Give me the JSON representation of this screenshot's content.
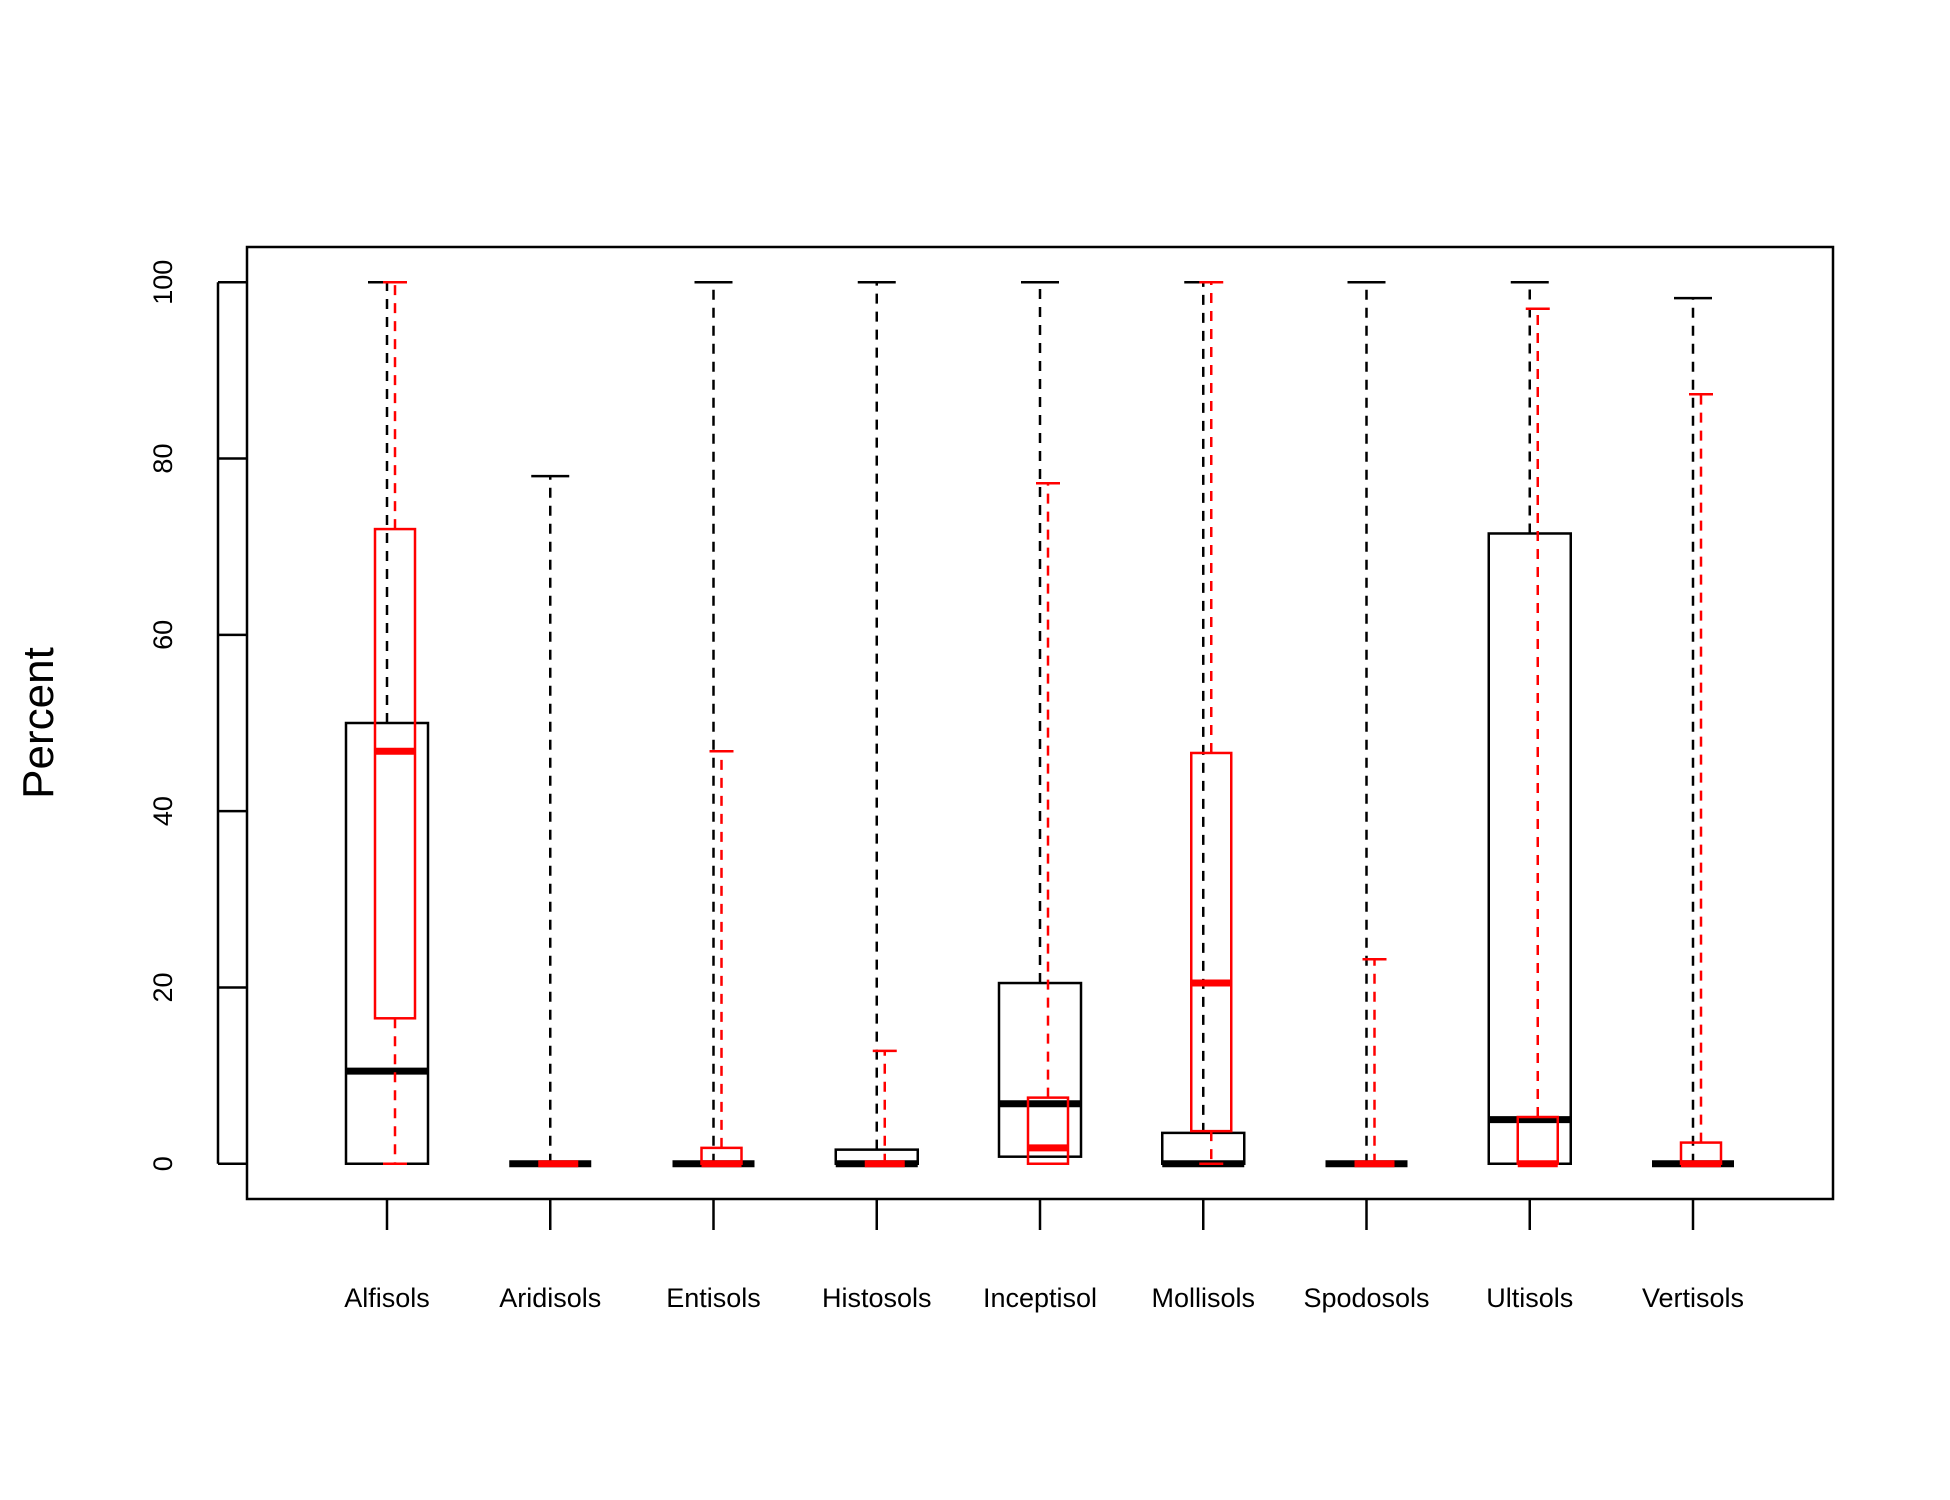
{
  "chart_data": {
    "type": "boxplot",
    "ylabel": "Percent",
    "ylim": [
      -4,
      104
    ],
    "yticks": [
      0,
      20,
      40,
      60,
      80,
      100
    ],
    "categories": [
      "Alfisols",
      "Aridisols",
      "Entisols",
      "Histosols",
      "Inceptisol",
      "Mollisols",
      "Spodosols",
      "Ultisols",
      "Vertisols"
    ],
    "series": [
      {
        "color": "#000000",
        "boxes": [
          {
            "whisker_low": 0,
            "q1": 0,
            "median": 10.5,
            "q3": 50,
            "whisker_high": 100
          },
          {
            "whisker_low": 0,
            "q1": 0,
            "median": 0,
            "q3": 0,
            "whisker_high": 78
          },
          {
            "whisker_low": 0,
            "q1": 0,
            "median": 0,
            "q3": 0,
            "whisker_high": 100
          },
          {
            "whisker_low": 0,
            "q1": 0,
            "median": 0,
            "q3": 1.6,
            "whisker_high": 100
          },
          {
            "whisker_low": 0.8,
            "q1": 0.8,
            "median": 6.8,
            "q3": 20.5,
            "whisker_high": 100
          },
          {
            "whisker_low": 0,
            "q1": 0,
            "median": 0,
            "q3": 3.5,
            "whisker_high": 100
          },
          {
            "whisker_low": 0,
            "q1": 0,
            "median": 0,
            "q3": 0,
            "whisker_high": 100
          },
          {
            "whisker_low": 0,
            "q1": 0,
            "median": 5,
            "q3": 71.5,
            "whisker_high": 100
          },
          {
            "whisker_low": 0,
            "q1": 0,
            "median": 0,
            "q3": 0,
            "whisker_high": 98.2
          }
        ]
      },
      {
        "color": "#ff0000",
        "boxes": [
          {
            "whisker_low": 0,
            "q1": 16.5,
            "median": 46.8,
            "q3": 72,
            "whisker_high": 100
          },
          {
            "whisker_low": 0,
            "q1": 0,
            "median": 0,
            "q3": 0,
            "whisker_high": 0
          },
          {
            "whisker_low": 0,
            "q1": 0,
            "median": 0,
            "q3": 1.8,
            "whisker_high": 46.8
          },
          {
            "whisker_low": 0,
            "q1": 0,
            "median": 0,
            "q3": 0,
            "whisker_high": 12.8
          },
          {
            "whisker_low": 0,
            "q1": 0,
            "median": 1.8,
            "q3": 7.5,
            "whisker_high": 77.2
          },
          {
            "whisker_low": 0,
            "q1": 3.7,
            "median": 20.5,
            "q3": 46.6,
            "whisker_high": 100
          },
          {
            "whisker_low": 0,
            "q1": 0,
            "median": 0,
            "q3": 0,
            "whisker_high": 23.2
          },
          {
            "whisker_low": 0,
            "q1": 0,
            "median": 0,
            "q3": 5.3,
            "whisker_high": 97
          },
          {
            "whisker_low": 0,
            "q1": 0,
            "median": 0,
            "q3": 2.4,
            "whisker_high": 87.3
          }
        ]
      }
    ],
    "grid": false,
    "legend": "none"
  }
}
